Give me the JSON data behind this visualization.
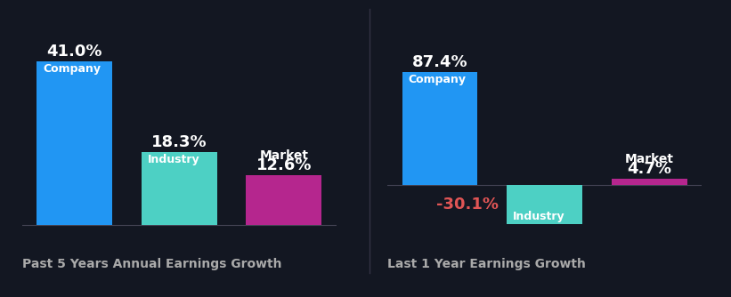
{
  "background_color": "#131722",
  "left_chart": {
    "title": "Past 5 Years Annual Earnings Growth",
    "bars": [
      {
        "label": "Company",
        "value": 41.0,
        "color": "#2196f3",
        "label_outside": false
      },
      {
        "label": "Industry",
        "value": 18.3,
        "color": "#4dd0c4",
        "label_outside": false
      },
      {
        "label": "Market",
        "value": 12.6,
        "color": "#b5268e",
        "label_outside": true
      }
    ]
  },
  "right_chart": {
    "title": "Last 1 Year Earnings Growth",
    "bars": [
      {
        "label": "Company",
        "value": 87.4,
        "color": "#2196f3",
        "label_outside": false
      },
      {
        "label": "Industry",
        "value": -30.1,
        "color": "#4dd0c4",
        "label_outside": false
      },
      {
        "label": "Market",
        "value": 4.7,
        "color": "#b5268e",
        "label_outside": true
      }
    ]
  },
  "label_color_positive": "#ffffff",
  "label_color_negative": "#e05555",
  "title_color": "#aaaaaa",
  "bar_label_inside_color": "#ffffff",
  "title_fontsize": 10,
  "value_fontsize": 13,
  "bar_label_fontsize": 9,
  "outside_label_fontsize": 10
}
